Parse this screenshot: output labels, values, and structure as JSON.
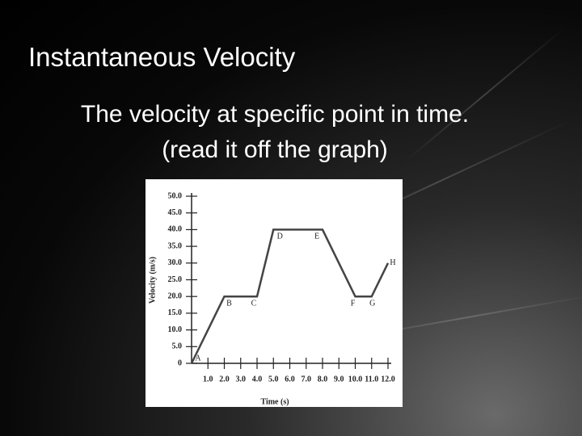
{
  "slide": {
    "title": "Instantaneous Velocity",
    "subtitle": [
      "The velocity at specific point in time.",
      "(read it off the graph)"
    ]
  },
  "chart_data": {
    "type": "line",
    "x_label": "Time (s)",
    "y_label": "Velocity (m/s)",
    "x": [
      0,
      2,
      4,
      5,
      8,
      10,
      11,
      12
    ],
    "values": [
      0,
      20,
      20,
      40,
      40,
      20,
      20,
      30
    ],
    "point_labels": [
      "A",
      "B",
      "C",
      "D",
      "E",
      "F",
      "G",
      "H"
    ],
    "color": "#444444",
    "xlim": [
      0,
      12
    ],
    "ylim": [
      0,
      50
    ],
    "xticks": [
      {
        "value": 1,
        "label": "1.0"
      },
      {
        "value": 2,
        "label": "2.0"
      },
      {
        "value": 3,
        "label": "3.0"
      },
      {
        "value": 4,
        "label": "4.0"
      },
      {
        "value": 5,
        "label": "5.0"
      },
      {
        "value": 6,
        "label": "6.0"
      },
      {
        "value": 7,
        "label": "7.0"
      },
      {
        "value": 8,
        "label": "8.0"
      },
      {
        "value": 9,
        "label": "9.0"
      },
      {
        "value": 10,
        "label": "10.0"
      },
      {
        "value": 11,
        "label": "11.0"
      },
      {
        "value": 12,
        "label": "12.0"
      }
    ],
    "yticks": [
      0,
      {
        "value": 5,
        "label": "5.0"
      },
      {
        "value": 10,
        "label": "10.0"
      },
      {
        "value": 15,
        "label": "15.0"
      },
      {
        "value": 20,
        "label": "20.0"
      },
      {
        "value": 25,
        "label": "25.0"
      },
      {
        "value": 30,
        "label": "30.0"
      },
      {
        "value": 35,
        "label": "35.0"
      },
      {
        "value": 40,
        "label": "40.0"
      },
      {
        "value": 45,
        "label": "45.0"
      },
      {
        "value": 50,
        "label": "50.0"
      }
    ]
  }
}
